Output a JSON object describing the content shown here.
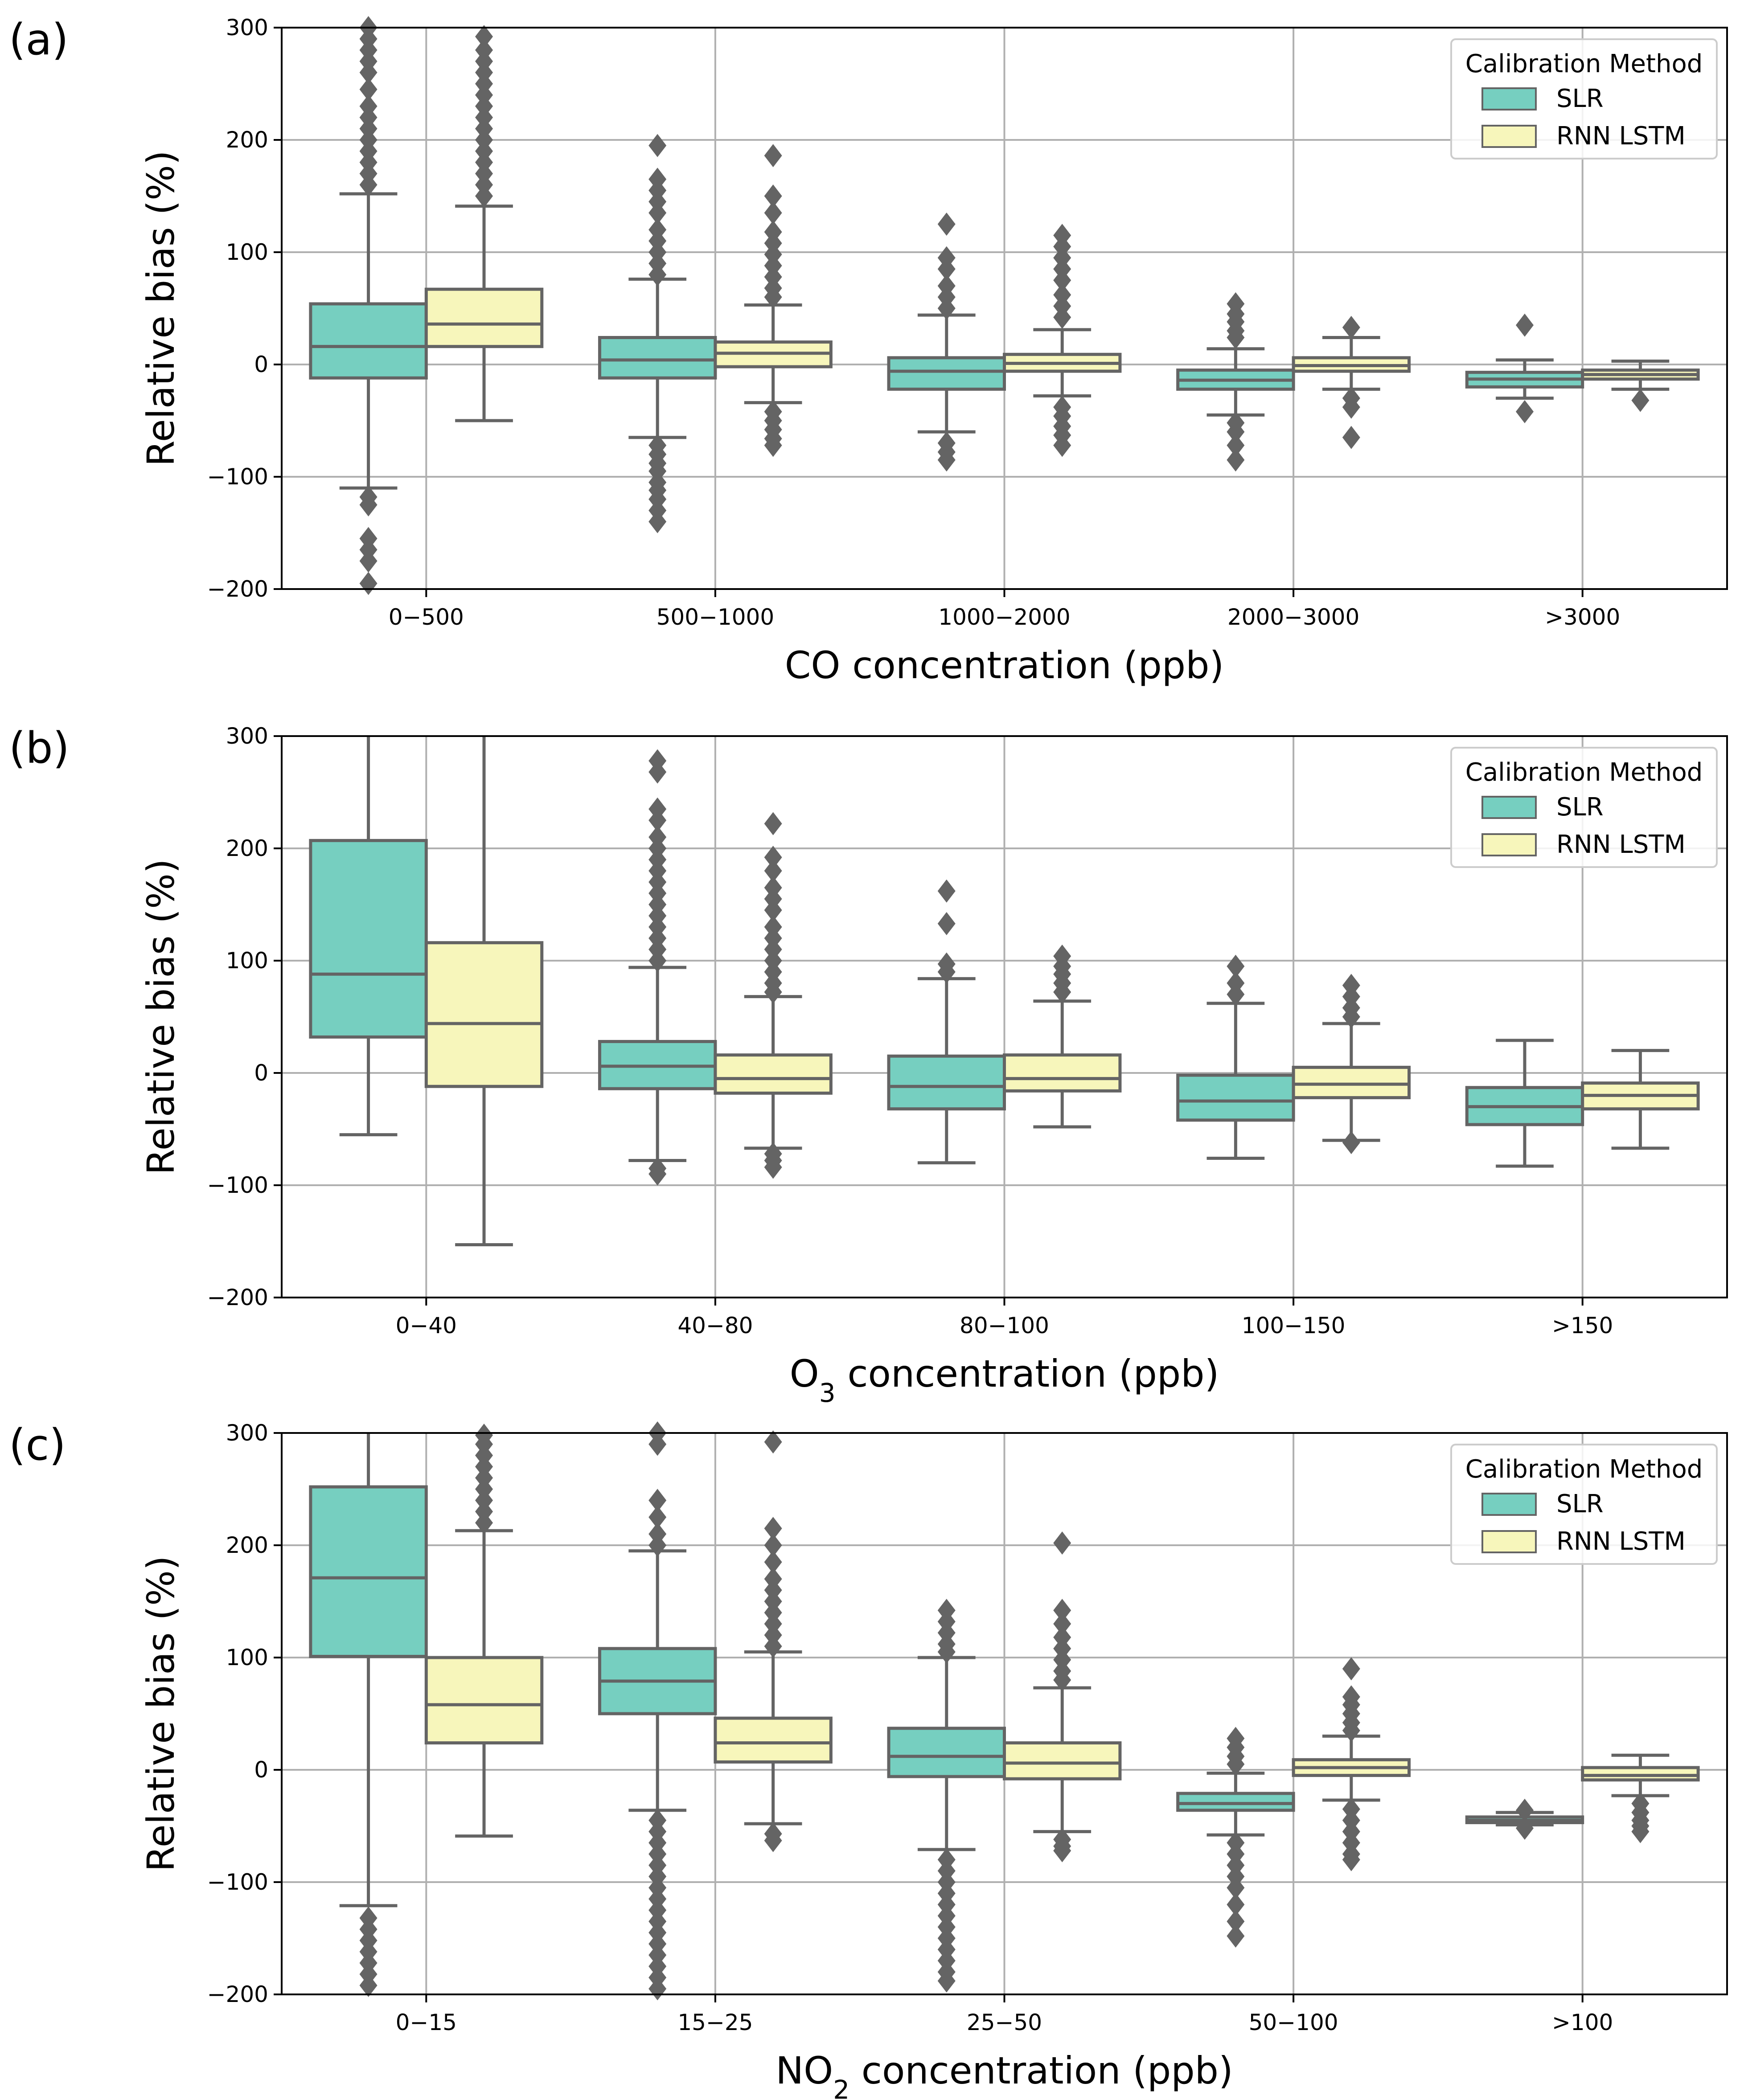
{
  "chart_data": [
    {
      "type": "box",
      "panel_label": "(a)",
      "xlabel_main": "CO concentration (ppb)",
      "xlabel_prefix": "CO",
      "xlabel_sub": "",
      "xlabel_suffix": " concentration (ppb)",
      "ylabel": "Relative bias (%)",
      "ylim": [
        -200,
        300
      ],
      "yticks": [
        "300",
        "200",
        "100",
        "0",
        "−100",
        "−200"
      ],
      "ytick_values": [
        300,
        200,
        100,
        0,
        -100,
        -200
      ],
      "grid": true,
      "legend": {
        "title": "Calibration Method",
        "position": "upper right",
        "entries": [
          "SLR",
          "RNN LSTM"
        ]
      },
      "categories": [
        "0−500",
        "500−1000",
        "1000−2000",
        "2000−3000",
        ">3000"
      ],
      "series": [
        {
          "name": "SLR",
          "color": "#76cfc0",
          "boxes": [
            {
              "q1": -12,
              "median": 16,
              "q3": 54,
              "wlo": -110,
              "whi": 152,
              "fliers": [
                300,
                290,
                280,
                270,
                260,
                245,
                230,
                220,
                210,
                200,
                190,
                180,
                170,
                160,
                -118,
                -125,
                -155,
                -165,
                -175,
                -195
              ]
            },
            {
              "q1": -12,
              "median": 4,
              "q3": 24,
              "wlo": -65,
              "whi": 76,
              "fliers": [
                195,
                165,
                155,
                145,
                135,
                120,
                110,
                100,
                90,
                80,
                -72,
                -80,
                -88,
                -95,
                -105,
                -112,
                -120,
                -130,
                -140
              ]
            },
            {
              "q1": -22,
              "median": -6,
              "q3": 6,
              "wlo": -60,
              "whi": 44,
              "fliers": [
                125,
                95,
                85,
                70,
                60,
                50,
                -70,
                -78,
                -85
              ]
            },
            {
              "q1": -22,
              "median": -14,
              "q3": -5,
              "wlo": -45,
              "whi": 14,
              "fliers": [
                54,
                45,
                38,
                30,
                24,
                -52,
                -60,
                -72,
                -85
              ]
            },
            {
              "q1": -20,
              "median": -13,
              "q3": -7,
              "wlo": -30,
              "whi": 4,
              "fliers": [
                35,
                -42
              ]
            }
          ]
        },
        {
          "name": "RNN LSTM",
          "color": "#f7f6bb",
          "boxes": [
            {
              "q1": 16,
              "median": 36,
              "q3": 67,
              "wlo": -50,
              "whi": 141,
              "fliers": [
                292,
                280,
                270,
                260,
                250,
                240,
                230,
                220,
                210,
                200,
                190,
                180,
                170,
                160,
                150
              ]
            },
            {
              "q1": -2,
              "median": 10,
              "q3": 20,
              "wlo": -34,
              "whi": 53,
              "fliers": [
                186,
                150,
                135,
                118,
                108,
                98,
                88,
                78,
                68,
                60,
                -42,
                -50,
                -58,
                -66,
                -72
              ]
            },
            {
              "q1": -6,
              "median": 1,
              "q3": 9,
              "wlo": -28,
              "whi": 31,
              "fliers": [
                115,
                105,
                95,
                85,
                75,
                62,
                52,
                42,
                -38,
                -46,
                -55,
                -63,
                -72
              ]
            },
            {
              "q1": -6,
              "median": -1,
              "q3": 6,
              "wlo": -22,
              "whi": 24,
              "fliers": [
                33,
                -30,
                -38,
                -65
              ]
            },
            {
              "q1": -13,
              "median": -9,
              "q3": -5,
              "wlo": -22,
              "whi": 3,
              "fliers": [
                -32
              ]
            }
          ]
        }
      ]
    },
    {
      "type": "box",
      "panel_label": "(b)",
      "xlabel_main": "O3 concentration (ppb)",
      "xlabel_prefix": "O",
      "xlabel_sub": "3",
      "xlabel_suffix": " concentration (ppb)",
      "ylabel": "Relative bias (%)",
      "ylim": [
        -200,
        300
      ],
      "yticks": [
        "300",
        "200",
        "100",
        "0",
        "−100",
        "−200"
      ],
      "ytick_values": [
        300,
        200,
        100,
        0,
        -100,
        -200
      ],
      "grid": true,
      "legend": {
        "title": "Calibration Method",
        "position": "upper right",
        "entries": [
          "SLR",
          "RNN LSTM"
        ]
      },
      "categories": [
        "0−40",
        "40−80",
        "80−100",
        "100−150",
        ">150"
      ],
      "series": [
        {
          "name": "SLR",
          "color": "#76cfc0",
          "boxes": [
            {
              "q1": 32,
              "median": 88,
              "q3": 207,
              "wlo": -55,
              "whi": 300,
              "fliers": []
            },
            {
              "q1": -14,
              "median": 6,
              "q3": 28,
              "wlo": -78,
              "whi": 94,
              "fliers": [
                278,
                268,
                235,
                225,
                210,
                200,
                190,
                180,
                170,
                160,
                150,
                140,
                130,
                120,
                110,
                100,
                -85,
                -90
              ]
            },
            {
              "q1": -32,
              "median": -12,
              "q3": 15,
              "wlo": -80,
              "whi": 84,
              "fliers": [
                162,
                133,
                97,
                90
              ]
            },
            {
              "q1": -42,
              "median": -25,
              "q3": -2,
              "wlo": -76,
              "whi": 62,
              "fliers": [
                95,
                80,
                70
              ]
            },
            {
              "q1": -46,
              "median": -30,
              "q3": -13,
              "wlo": -83,
              "whi": 29,
              "fliers": []
            }
          ]
        },
        {
          "name": "RNN LSTM",
          "color": "#f7f6bb",
          "boxes": [
            {
              "q1": -12,
              "median": 44,
              "q3": 116,
              "wlo": -153,
              "whi": 300,
              "fliers": []
            },
            {
              "q1": -18,
              "median": -5,
              "q3": 16,
              "wlo": -67,
              "whi": 68,
              "fliers": [
                222,
                192,
                180,
                165,
                155,
                145,
                130,
                120,
                110,
                100,
                90,
                80,
                72,
                -72,
                -78,
                -84
              ]
            },
            {
              "q1": -16,
              "median": -5,
              "q3": 16,
              "wlo": -48,
              "whi": 64,
              "fliers": [
                104,
                95,
                88,
                80,
                72
              ]
            },
            {
              "q1": -22,
              "median": -10,
              "q3": 5,
              "wlo": -60,
              "whi": 44,
              "fliers": [
                78,
                68,
                58,
                50,
                -62
              ]
            },
            {
              "q1": -32,
              "median": -20,
              "q3": -9,
              "wlo": -67,
              "whi": 20,
              "fliers": []
            }
          ]
        }
      ]
    },
    {
      "type": "box",
      "panel_label": "(c)",
      "xlabel_main": "NO2 concentration (ppb)",
      "xlabel_prefix": "NO",
      "xlabel_sub": "2",
      "xlabel_suffix": " concentration (ppb)",
      "ylabel": "Relative bias (%)",
      "ylim": [
        -200,
        300
      ],
      "yticks": [
        "300",
        "200",
        "100",
        "0",
        "−100",
        "−200"
      ],
      "ytick_values": [
        300,
        200,
        100,
        0,
        -100,
        -200
      ],
      "grid": true,
      "legend": {
        "title": "Calibration Method",
        "position": "upper right",
        "entries": [
          "SLR",
          "RNN LSTM"
        ]
      },
      "categories": [
        "0−15",
        "15−25",
        "25−50",
        "50−100",
        ">100"
      ],
      "series": [
        {
          "name": "SLR",
          "color": "#76cfc0",
          "boxes": [
            {
              "q1": 101,
              "median": 171,
              "q3": 252,
              "wlo": -121,
              "whi": 300,
              "fliers": [
                -132,
                -142,
                -152,
                -162,
                -172,
                -182,
                -192
              ]
            },
            {
              "q1": 50,
              "median": 79,
              "q3": 108,
              "wlo": -36,
              "whi": 195,
              "fliers": [
                300,
                290,
                240,
                225,
                210,
                200,
                -45,
                -55,
                -65,
                -75,
                -85,
                -95,
                -105,
                -115,
                -125,
                -135,
                -145,
                -155,
                -165,
                -175,
                -185,
                -195
              ]
            },
            {
              "q1": -6,
              "median": 12,
              "q3": 37,
              "wlo": -71,
              "whi": 100,
              "fliers": [
                142,
                132,
                122,
                112,
                105,
                -80,
                -90,
                -100,
                -110,
                -120,
                -130,
                -140,
                -150,
                -160,
                -170,
                -180,
                -188
              ]
            },
            {
              "q1": -36,
              "median": -30,
              "q3": -21,
              "wlo": -58,
              "whi": -3,
              "fliers": [
                28,
                20,
                12,
                5,
                -65,
                -75,
                -85,
                -95,
                -105,
                -120,
                -135,
                -148
              ]
            },
            {
              "q1": -47,
              "median": -45,
              "q3": -42,
              "wlo": -49,
              "whi": -38,
              "fliers": [
                -36,
                -52
              ]
            }
          ]
        },
        {
          "name": "RNN LSTM",
          "color": "#f7f6bb",
          "boxes": [
            {
              "q1": 24,
              "median": 58,
              "q3": 100,
              "wlo": -59,
              "whi": 213,
              "fliers": [
                298,
                290,
                280,
                270,
                260,
                250,
                240,
                230,
                220
              ]
            },
            {
              "q1": 7,
              "median": 24,
              "q3": 46,
              "wlo": -48,
              "whi": 105,
              "fliers": [
                292,
                215,
                200,
                185,
                170,
                160,
                150,
                140,
                130,
                120,
                110,
                -57,
                -63
              ]
            },
            {
              "q1": -8,
              "median": 6,
              "q3": 24,
              "wlo": -55,
              "whi": 73,
              "fliers": [
                202,
                142,
                130,
                118,
                108,
                98,
                88,
                80,
                -62,
                -68,
                -72
              ]
            },
            {
              "q1": -5,
              "median": 2,
              "q3": 9,
              "wlo": -27,
              "whi": 30,
              "fliers": [
                90,
                65,
                58,
                50,
                42,
                35,
                -35,
                -45,
                -55,
                -65,
                -75,
                -80
              ]
            },
            {
              "q1": -9,
              "median": -5,
              "q3": 2,
              "wlo": -23,
              "whi": 13,
              "fliers": [
                -30,
                -38,
                -45,
                -50,
                -55
              ]
            }
          ]
        }
      ]
    }
  ]
}
